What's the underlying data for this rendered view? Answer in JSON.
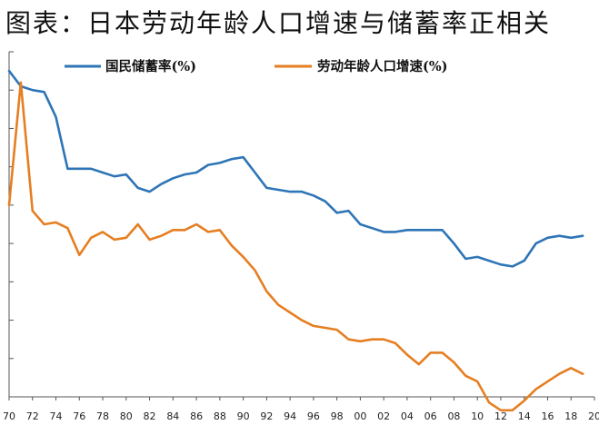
{
  "chart_data": {
    "type": "line",
    "title": "图表：日本劳动年龄人口增速与储蓄率正相关",
    "xlabel": "",
    "ylabel": "",
    "x_tick_labels": [
      "70",
      "72",
      "74",
      "76",
      "78",
      "80",
      "82",
      "84",
      "86",
      "88",
      "90",
      "92",
      "94",
      "96",
      "98",
      "00",
      "02",
      "04",
      "06",
      "08",
      "10",
      "12",
      "14",
      "16",
      "18",
      "20"
    ],
    "x": [
      1970,
      1971,
      1972,
      1973,
      1974,
      1975,
      1976,
      1977,
      1978,
      1979,
      1980,
      1981,
      1982,
      1983,
      1984,
      1985,
      1986,
      1987,
      1988,
      1989,
      1990,
      1991,
      1992,
      1993,
      1994,
      1995,
      1996,
      1997,
      1998,
      1999,
      2000,
      2001,
      2002,
      2003,
      2004,
      2005,
      2006,
      2007,
      2008,
      2009,
      2010,
      2011,
      2012,
      2013,
      2014,
      2015,
      2016,
      2017,
      2018,
      2019
    ],
    "xlim": [
      1970,
      2020
    ],
    "ylim": [
      0,
      9
    ],
    "grid": false,
    "legend_position": "top",
    "series": [
      {
        "name": "国民储蓄率(%)",
        "color": "#2E75B6",
        "values": [
          8.5,
          8.1,
          8.0,
          7.95,
          7.3,
          5.95,
          5.95,
          5.95,
          5.85,
          5.75,
          5.8,
          5.45,
          5.35,
          5.55,
          5.7,
          5.8,
          5.85,
          6.05,
          6.1,
          6.2,
          6.25,
          5.85,
          5.45,
          5.4,
          5.35,
          5.35,
          5.25,
          5.1,
          4.8,
          4.85,
          4.5,
          4.4,
          4.3,
          4.3,
          4.35,
          4.35,
          4.35,
          4.35,
          4.0,
          3.6,
          3.65,
          3.55,
          3.45,
          3.4,
          3.55,
          4.0,
          4.15,
          4.2,
          4.15,
          4.2
        ]
      },
      {
        "name": "劳动年龄人口增速(%)",
        "color": "#E67E22",
        "values": [
          5.0,
          8.2,
          4.85,
          4.5,
          4.55,
          4.4,
          3.7,
          4.15,
          4.3,
          4.1,
          4.15,
          4.5,
          4.1,
          4.2,
          4.35,
          4.35,
          4.5,
          4.3,
          4.35,
          3.95,
          3.65,
          3.3,
          2.75,
          2.4,
          2.2,
          2.0,
          1.85,
          1.8,
          1.75,
          1.5,
          1.45,
          1.5,
          1.5,
          1.4,
          1.1,
          0.85,
          1.15,
          1.15,
          0.9,
          0.55,
          0.4,
          -0.15,
          -0.35,
          -0.35,
          -0.1,
          0.2,
          0.4,
          0.6,
          0.75,
          0.6
        ]
      }
    ]
  }
}
